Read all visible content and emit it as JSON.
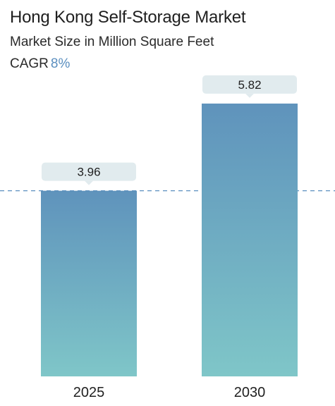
{
  "header": {
    "title": "Hong Kong Self-Storage Market",
    "subtitle": "Market Size in Million Square Feet",
    "cagr_label": "CAGR",
    "cagr_value": "8%"
  },
  "colors": {
    "bar_top": "#5f93bc",
    "bar_bottom": "#7fc6c8",
    "callout_bg": "#e1ebee",
    "reference_line": "#5b8fbf",
    "cagr_accent": "#5b8fbf"
  },
  "chart_data": {
    "type": "bar",
    "categories": [
      "2025",
      "2030"
    ],
    "values": [
      3.96,
      5.82
    ],
    "value_labels": [
      "3.96",
      "5.82"
    ],
    "ylim": [
      0,
      6.3
    ],
    "reference_line": 3.96,
    "grid": false
  }
}
